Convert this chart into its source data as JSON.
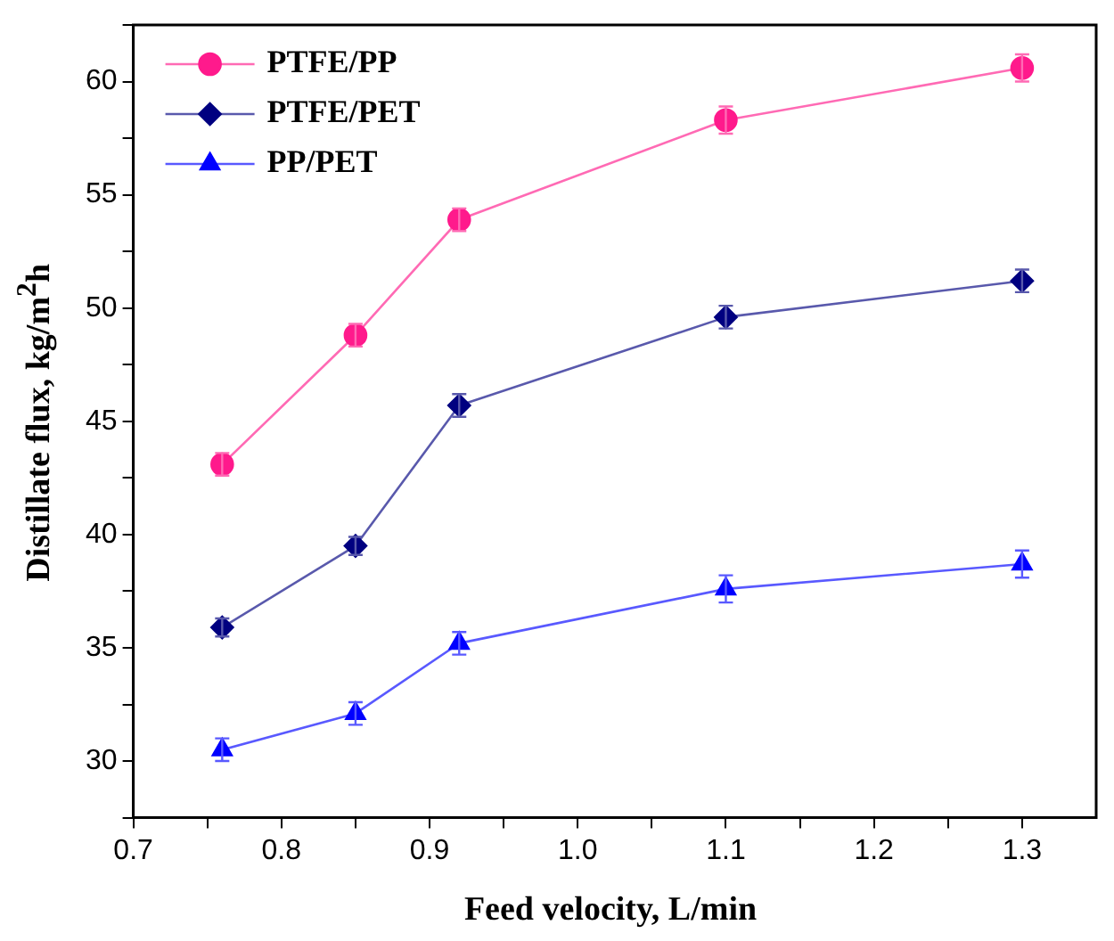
{
  "chart_data": {
    "type": "line",
    "xlabel": "Feed velocity, L/min",
    "ylabel": "Distillate flux,  kg/m$^{2}$h",
    "x": [
      0.76,
      0.85,
      0.92,
      1.1,
      1.3
    ],
    "series": [
      {
        "name": "PTFE/PP",
        "color": "#ff1a8c",
        "marker": "circle",
        "values": [
          43.1,
          48.8,
          53.9,
          58.3,
          60.6
        ],
        "errors": [
          0.5,
          0.5,
          0.5,
          0.6,
          0.6
        ]
      },
      {
        "name": "PTFE/PET",
        "color": "#000080",
        "marker": "diamond",
        "values": [
          35.9,
          39.5,
          45.7,
          49.6,
          51.2
        ],
        "errors": [
          0.4,
          0.4,
          0.5,
          0.5,
          0.5
        ]
      },
      {
        "name": "PP/PET",
        "color": "#0000ff",
        "marker": "triangle",
        "values": [
          30.5,
          32.1,
          35.2,
          37.6,
          38.7
        ],
        "errors": [
          0.5,
          0.5,
          0.5,
          0.6,
          0.6
        ]
      }
    ],
    "xlim": [
      0.7,
      1.35
    ],
    "xticks": [
      0.7,
      {
        "value": 0.75,
        "label": null
      },
      0.8,
      {
        "value": 0.85,
        "label": null
      },
      0.9,
      {
        "value": 0.95,
        "label": null
      },
      {
        "value": 1.0,
        "label": "1.0"
      },
      {
        "value": 1.05,
        "label": null
      },
      1.1,
      {
        "value": 1.15,
        "label": null
      },
      1.2,
      {
        "value": 1.25,
        "label": null
      },
      1.3
    ],
    "ylim": [
      27.5,
      62.5
    ],
    "yticks": [
      {
        "value": 27.5,
        "label": null
      },
      30,
      {
        "value": 32.5,
        "label": null
      },
      35,
      {
        "value": 37.5,
        "label": null
      },
      40,
      {
        "value": 42.5,
        "label": null
      },
      45,
      {
        "value": 47.5,
        "label": null
      },
      50,
      {
        "value": 52.5,
        "label": null
      },
      55,
      {
        "value": 57.5,
        "label": null
      },
      60,
      {
        "value": 62.5,
        "label": null
      }
    ],
    "grid": false,
    "legend": "top left",
    "line_style": "solid"
  }
}
